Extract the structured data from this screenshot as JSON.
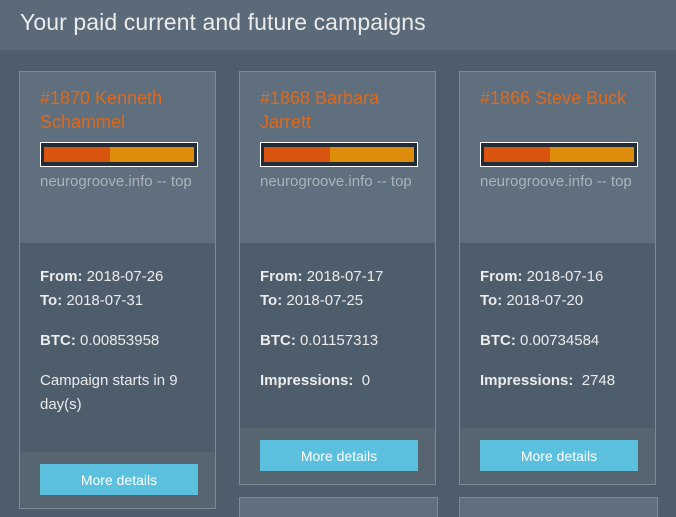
{
  "header": {
    "title": "Your paid current and future campaigns"
  },
  "labels": {
    "from": "From:",
    "to": "To:",
    "btc": "BTC:",
    "impressions": "Impressions:",
    "more_details": "More details"
  },
  "campaigns": [
    {
      "title": "#1870 Kenneth Schammel",
      "site": "neurogroove.info -- top",
      "progress_primary": 0.44,
      "progress_secondary": 0.56,
      "from": "2018-07-26",
      "to": "2018-07-31",
      "btc": "0.00853958",
      "note": "Campaign starts in 9 day(s)"
    },
    {
      "title": "#1868 Barbara Jarrett",
      "site": "neurogroove.info -- top",
      "progress_primary": 0.44,
      "progress_secondary": 0.56,
      "from": "2018-07-17",
      "to": "2018-07-25",
      "btc": "0.01157313",
      "impressions": "0"
    },
    {
      "title": "#1866 Steve Buck",
      "site": "neurogroove.info -- top",
      "progress_primary": 0.44,
      "progress_secondary": 0.56,
      "from": "2018-07-16",
      "to": "2018-07-20",
      "btc": "0.00734584",
      "impressions": "2748"
    }
  ]
}
